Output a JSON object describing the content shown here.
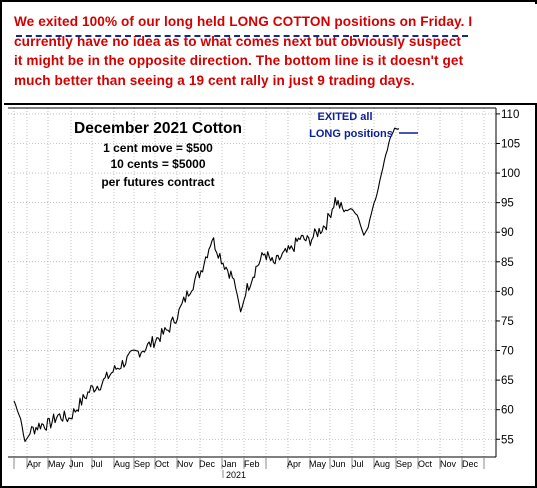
{
  "header": {
    "line1_pre": "We exited 100% of our long held ",
    "line1_highlight": "LONG COTTON",
    "line1_post": " positions on Friday. I",
    "line2": "currently have no idea as to what comes next but obviously suspect",
    "line3": "it might be in the opposite direction. The bottom line is it doesn't get",
    "line4": "much better than seeing a 19 cent rally in just 9 trading days."
  },
  "colors": {
    "header_text": "#d40000",
    "underline": "#0b2a9e",
    "annotation_blue": "#0a1f9c",
    "price_line": "#000000",
    "grid": "#9a9a9a"
  },
  "chart_data": {
    "type": "line",
    "title": "December 2021 Cotton",
    "subtitle_lines": [
      "1 cent move = $500",
      "10 cents = $5000",
      "per futures contract"
    ],
    "annotation_lines": [
      "EXITED all",
      "LONG positions"
    ],
    "x_tick_labels": [
      "Apr",
      "May",
      "Jun",
      "Jul",
      "Aug",
      "Sep",
      "Oct",
      "Nov",
      "Dec",
      "Jan",
      "Feb",
      "Apr",
      "May",
      "Jun",
      "Jul",
      "Aug",
      "Sep",
      "Oct",
      "Nov",
      "Dec"
    ],
    "year_label": "2021",
    "y_tick_labels": [
      "55",
      "60",
      "65",
      "70",
      "75",
      "80",
      "85",
      "90",
      "95",
      "100",
      "105",
      "110"
    ],
    "ylim": [
      52,
      111
    ],
    "grid": true,
    "y_axis_side": "right",
    "x": [
      0,
      0.3,
      0.5,
      0.8,
      1.2,
      1.6,
      2.0,
      2.5,
      3.0,
      3.5,
      4.0,
      4.5,
      5.0,
      5.5,
      6.0,
      6.5,
      7.0,
      7.5,
      8.0,
      8.5,
      9.0,
      9.5,
      10.0,
      10.3,
      10.6,
      11.0,
      11.4,
      11.8,
      12.2,
      12.6,
      13.0,
      13.4,
      13.8,
      14.2,
      14.6,
      15.0,
      15.3,
      15.6,
      15.9,
      16.1,
      16.3,
      16.5,
      16.7,
      16.9,
      17.1,
      17.3,
      17.5
    ],
    "y": [
      61.5,
      58.5,
      54.5,
      56.5,
      57.5,
      57.5,
      59.0,
      58.5,
      61.0,
      63.5,
      64.5,
      66.5,
      68.0,
      69.5,
      70.5,
      72.0,
      73.5,
      76.5,
      80.5,
      83.5,
      89.0,
      85.0,
      82.0,
      76.5,
      80.5,
      84.0,
      86.5,
      84.5,
      86.0,
      87.0,
      89.0,
      88.5,
      90.0,
      91.5,
      95.5,
      93.5,
      94.0,
      93.0,
      89.5,
      91.0,
      94.0,
      96.5,
      100.0,
      103.0,
      106.0,
      107.5,
      107.5
    ],
    "exit_point": {
      "x": 17.5,
      "y": 107.5
    }
  }
}
